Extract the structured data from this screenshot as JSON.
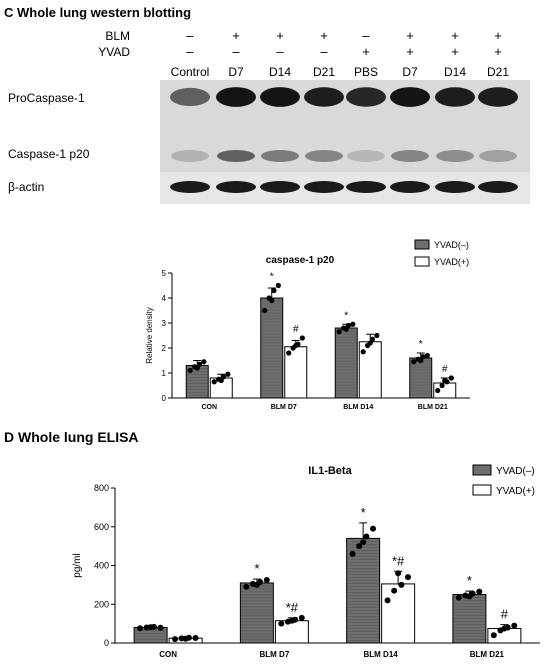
{
  "panel_c": {
    "title": "C Whole lung western blotting",
    "treatments": [
      {
        "label": "BLM",
        "marks": [
          "–",
          "+",
          "+",
          "+",
          "–",
          "+",
          "+",
          "+"
        ]
      },
      {
        "label": "YVAD",
        "marks": [
          "–",
          "–",
          "–",
          "–",
          "+",
          "+",
          "+",
          "+"
        ]
      }
    ],
    "lanes": [
      "Control",
      "D7",
      "D14",
      "D21",
      "PBS",
      "D7",
      "D14",
      "D21"
    ],
    "blot_labels": [
      "ProCaspase-1",
      "Caspase-1 p20",
      "β-actin"
    ]
  },
  "panel_d": {
    "title": "D Whole lung ELISA"
  },
  "colors": {
    "dark_bar": "#6e6e6e",
    "light_bar": "#ffffff",
    "ink": "#000000"
  },
  "chart_data": [
    {
      "type": "bar",
      "title": "caspase-1 p20",
      "ylabel": "Relative density",
      "xlabel": "",
      "categories": [
        "CON",
        "BLM D7",
        "BLM D14",
        "BLM D21"
      ],
      "ylim": [
        0,
        5
      ],
      "yticks": [
        "0",
        "1",
        "2",
        "3",
        "4",
        "5"
      ],
      "legend": "top-right",
      "series": [
        {
          "name": "YVAD(–)",
          "values": [
            1.3,
            4.0,
            2.8,
            1.6
          ],
          "errors": [
            0.2,
            0.4,
            0.15,
            0.2
          ],
          "points": [
            [
              1.1,
              1.25,
              1.35,
              1.45,
              1.2
            ],
            [
              3.5,
              4.0,
              4.3,
              4.5,
              3.9
            ],
            [
              2.65,
              2.8,
              2.9,
              2.95,
              2.75
            ],
            [
              1.45,
              1.55,
              1.65,
              1.7,
              1.5
            ]
          ]
        },
        {
          "name": "YVAD(+)",
          "values": [
            0.8,
            2.05,
            2.25,
            0.6
          ],
          "errors": [
            0.15,
            0.25,
            0.3,
            0.2
          ],
          "points": [
            [
              0.65,
              0.75,
              0.85,
              0.95,
              0.7
            ],
            [
              1.8,
              2.0,
              2.15,
              2.4,
              2.1
            ],
            [
              1.85,
              2.1,
              2.35,
              2.5,
              2.2
            ],
            [
              0.3,
              0.5,
              0.65,
              0.8,
              0.7
            ]
          ]
        }
      ],
      "annotations": [
        {
          "category": "BLM D7",
          "series": 0,
          "text": "*"
        },
        {
          "category": "BLM D7",
          "series": 1,
          "text": "#"
        },
        {
          "category": "BLM D14",
          "series": 0,
          "text": "*"
        },
        {
          "category": "BLM D21",
          "series": 0,
          "text": "*"
        },
        {
          "category": "BLM D21",
          "series": 1,
          "text": "#"
        }
      ]
    },
    {
      "type": "bar",
      "title": "IL1-Beta",
      "ylabel": "pg/ml",
      "xlabel": "",
      "categories": [
        "CON",
        "BLM D7",
        "BLM D14",
        "BLM D21"
      ],
      "ylim": [
        0,
        800
      ],
      "yticks": [
        "0",
        "200",
        "400",
        "600",
        "800"
      ],
      "legend": "top-right",
      "series": [
        {
          "name": "YVAD(–)",
          "values": [
            80,
            310,
            540,
            250
          ],
          "errors": [
            8,
            20,
            80,
            18
          ],
          "points": [
            [
              76,
              80,
              83,
              79,
              82
            ],
            [
              290,
              305,
              315,
              325,
              300
            ],
            [
              460,
              500,
              550,
              590,
              520
            ],
            [
              235,
              245,
              255,
              265,
              240
            ]
          ]
        },
        {
          "name": "YVAD(+)",
          "values": [
            25,
            115,
            305,
            75
          ],
          "errors": [
            5,
            15,
            65,
            20
          ],
          "points": [
            [
              20,
              24,
              27,
              26,
              22
            ],
            [
              100,
              110,
              120,
              130,
              115
            ],
            [
              220,
              270,
              300,
              340,
              360
            ],
            [
              40,
              65,
              80,
              90,
              75
            ]
          ]
        }
      ],
      "annotations": [
        {
          "category": "BLM D7",
          "series": 0,
          "text": "*"
        },
        {
          "category": "BLM D7",
          "series": 1,
          "text": "*#"
        },
        {
          "category": "BLM D14",
          "series": 0,
          "text": "*"
        },
        {
          "category": "BLM D14",
          "series": 1,
          "text": "*#"
        },
        {
          "category": "BLM D21",
          "series": 0,
          "text": "*"
        },
        {
          "category": "BLM D21",
          "series": 1,
          "text": "#"
        }
      ]
    }
  ]
}
